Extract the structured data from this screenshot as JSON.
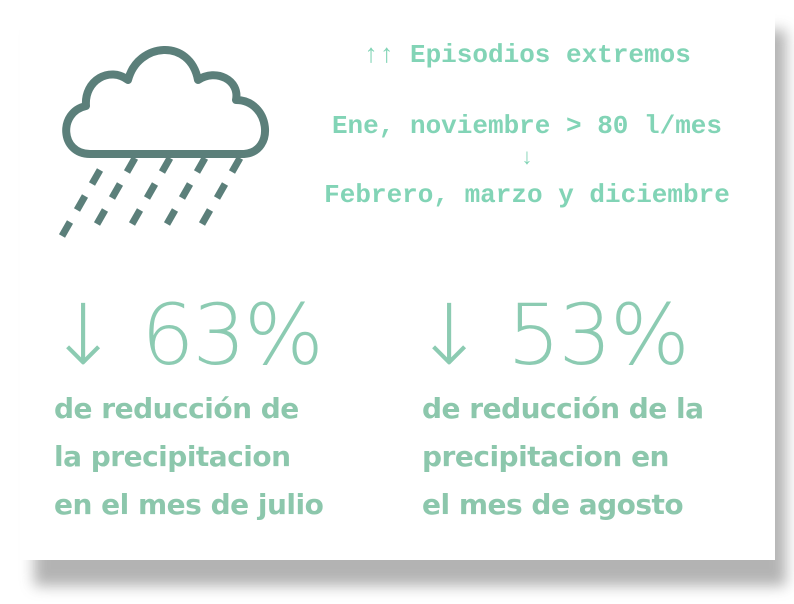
{
  "header": {
    "line1": "↑↑ Episodios extremos",
    "line2": "Ene, noviembre > 80 l/mes",
    "arrow": "↓",
    "line3": "Febrero, marzo y diciembre"
  },
  "stats": [
    {
      "figure": "↓ 63%",
      "text": [
        "de reducción de",
        "la precipitacion",
        "en el mes de julio"
      ]
    },
    {
      "figure": "↓ 53%",
      "text": [
        "de reducción de la",
        "precipitacion en",
        "el mes de agosto"
      ]
    }
  ]
}
